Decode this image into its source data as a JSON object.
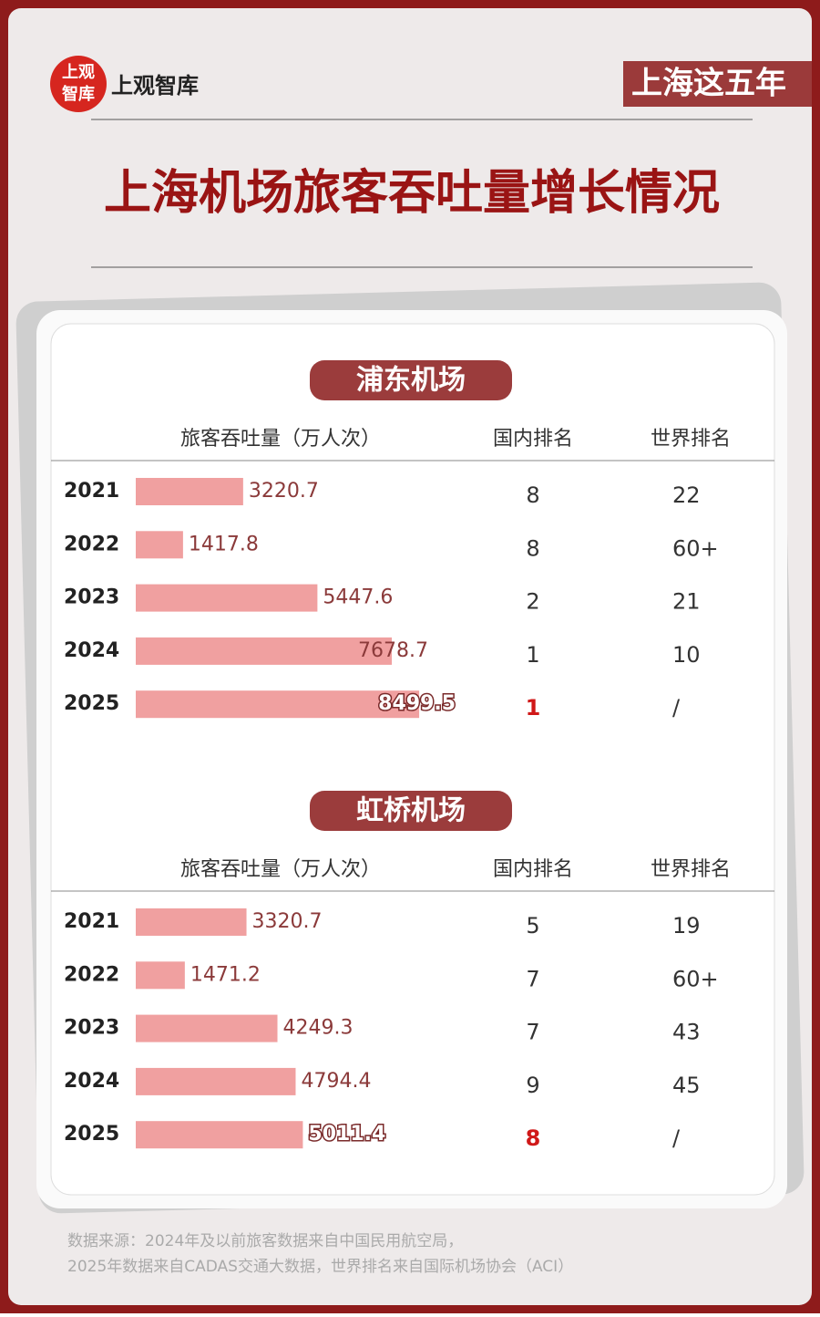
{
  "header": {
    "logo_mark": [
      "上观",
      "智库"
    ],
    "logo_text": "上观智库",
    "tag": "上海这五年",
    "title": "上海机场旅客吞吐量增长情况"
  },
  "sections": [
    {
      "name": "浦东机场",
      "columns": [
        "旅客吞吐量（万人次）",
        "国内排名",
        "世界排名"
      ],
      "rows": [
        [
          "2021",
          3220.7,
          8,
          22
        ],
        [
          "2022",
          1417.8,
          8,
          "60+"
        ],
        [
          "2023",
          5447.6,
          2,
          21
        ],
        [
          "2024",
          7678.7,
          1,
          10
        ],
        [
          "2025",
          8499.5,
          1,
          "/"
        ]
      ]
    },
    {
      "name": "虹桥机场",
      "columns": [
        "旅客吞吐量（万人次）",
        "国内排名",
        "世界排名"
      ],
      "rows": [
        [
          "2021",
          3320.7,
          5,
          19
        ],
        [
          "2022",
          1471.2,
          7,
          "60+"
        ],
        [
          "2023",
          4249.3,
          7,
          43
        ],
        [
          "2024",
          4794.4,
          9,
          45
        ],
        [
          "2025",
          5011.4,
          8,
          "/"
        ]
      ]
    }
  ],
  "source": [
    "数据来源：2024年及以前旅客数据来自中国民用航空局，",
    "2025年数据来自CADAS交通大数据，世界排名来自国际机场协会（ACI）"
  ]
}
